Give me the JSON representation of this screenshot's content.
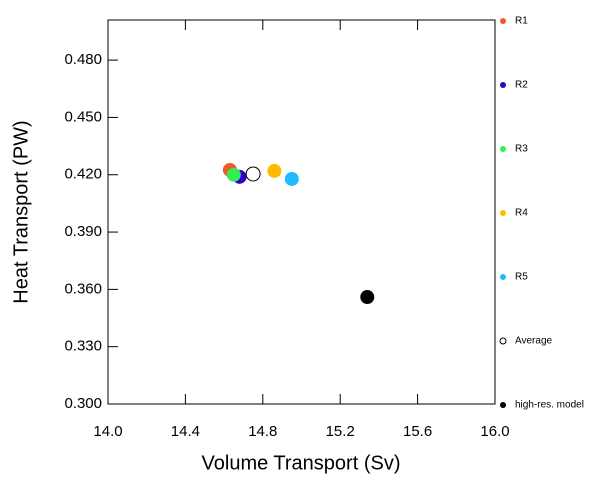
{
  "chart_data": {
    "type": "scatter",
    "x_label": "Volume Transport (Sv)",
    "y_label": "Heat Transport (PW)",
    "xlim": [
      14.0,
      16.0
    ],
    "ylim": [
      0.3,
      0.501
    ],
    "xticks": [
      {
        "value": 14.0,
        "label": "14.0"
      },
      14.4,
      14.8,
      15.2,
      15.6,
      {
        "value": 16.0,
        "label": "16.0"
      }
    ],
    "yticks": [
      {
        "value": 0.3,
        "label": "0.300"
      },
      {
        "value": 0.33,
        "label": "0.330"
      },
      {
        "value": 0.36,
        "label": "0.360"
      },
      {
        "value": 0.39,
        "label": "0.390"
      },
      {
        "value": 0.42,
        "label": "0.420"
      },
      {
        "value": 0.45,
        "label": "0.450"
      },
      {
        "value": 0.48,
        "label": "0.480"
      }
    ],
    "legend": "right",
    "series": [
      {
        "name": "R1",
        "color": "#f05a28",
        "marker": "filled",
        "x": [
          14.63
        ],
        "values": [
          0.4225
        ]
      },
      {
        "name": "R2",
        "color": "#3300cc",
        "marker": "filled",
        "x": [
          14.68
        ],
        "values": [
          0.4189
        ]
      },
      {
        "name": "R3",
        "color": "#33ee55",
        "marker": "filled",
        "x": [
          14.65
        ],
        "values": [
          0.42
        ]
      },
      {
        "name": "R4",
        "color": "#ffbb00",
        "marker": "filled",
        "x": [
          14.86
        ],
        "values": [
          0.422
        ]
      },
      {
        "name": "R5",
        "color": "#22bbff",
        "marker": "filled",
        "x": [
          14.95
        ],
        "values": [
          0.4178
        ]
      },
      {
        "name": "Average",
        "color": "#000000",
        "marker": "open",
        "x": [
          14.75
        ],
        "values": [
          0.4204
        ]
      },
      {
        "name": "high-res. model",
        "color": "#000000",
        "marker": "filled",
        "x": [
          15.34
        ],
        "values": [
          0.356
        ]
      }
    ]
  }
}
